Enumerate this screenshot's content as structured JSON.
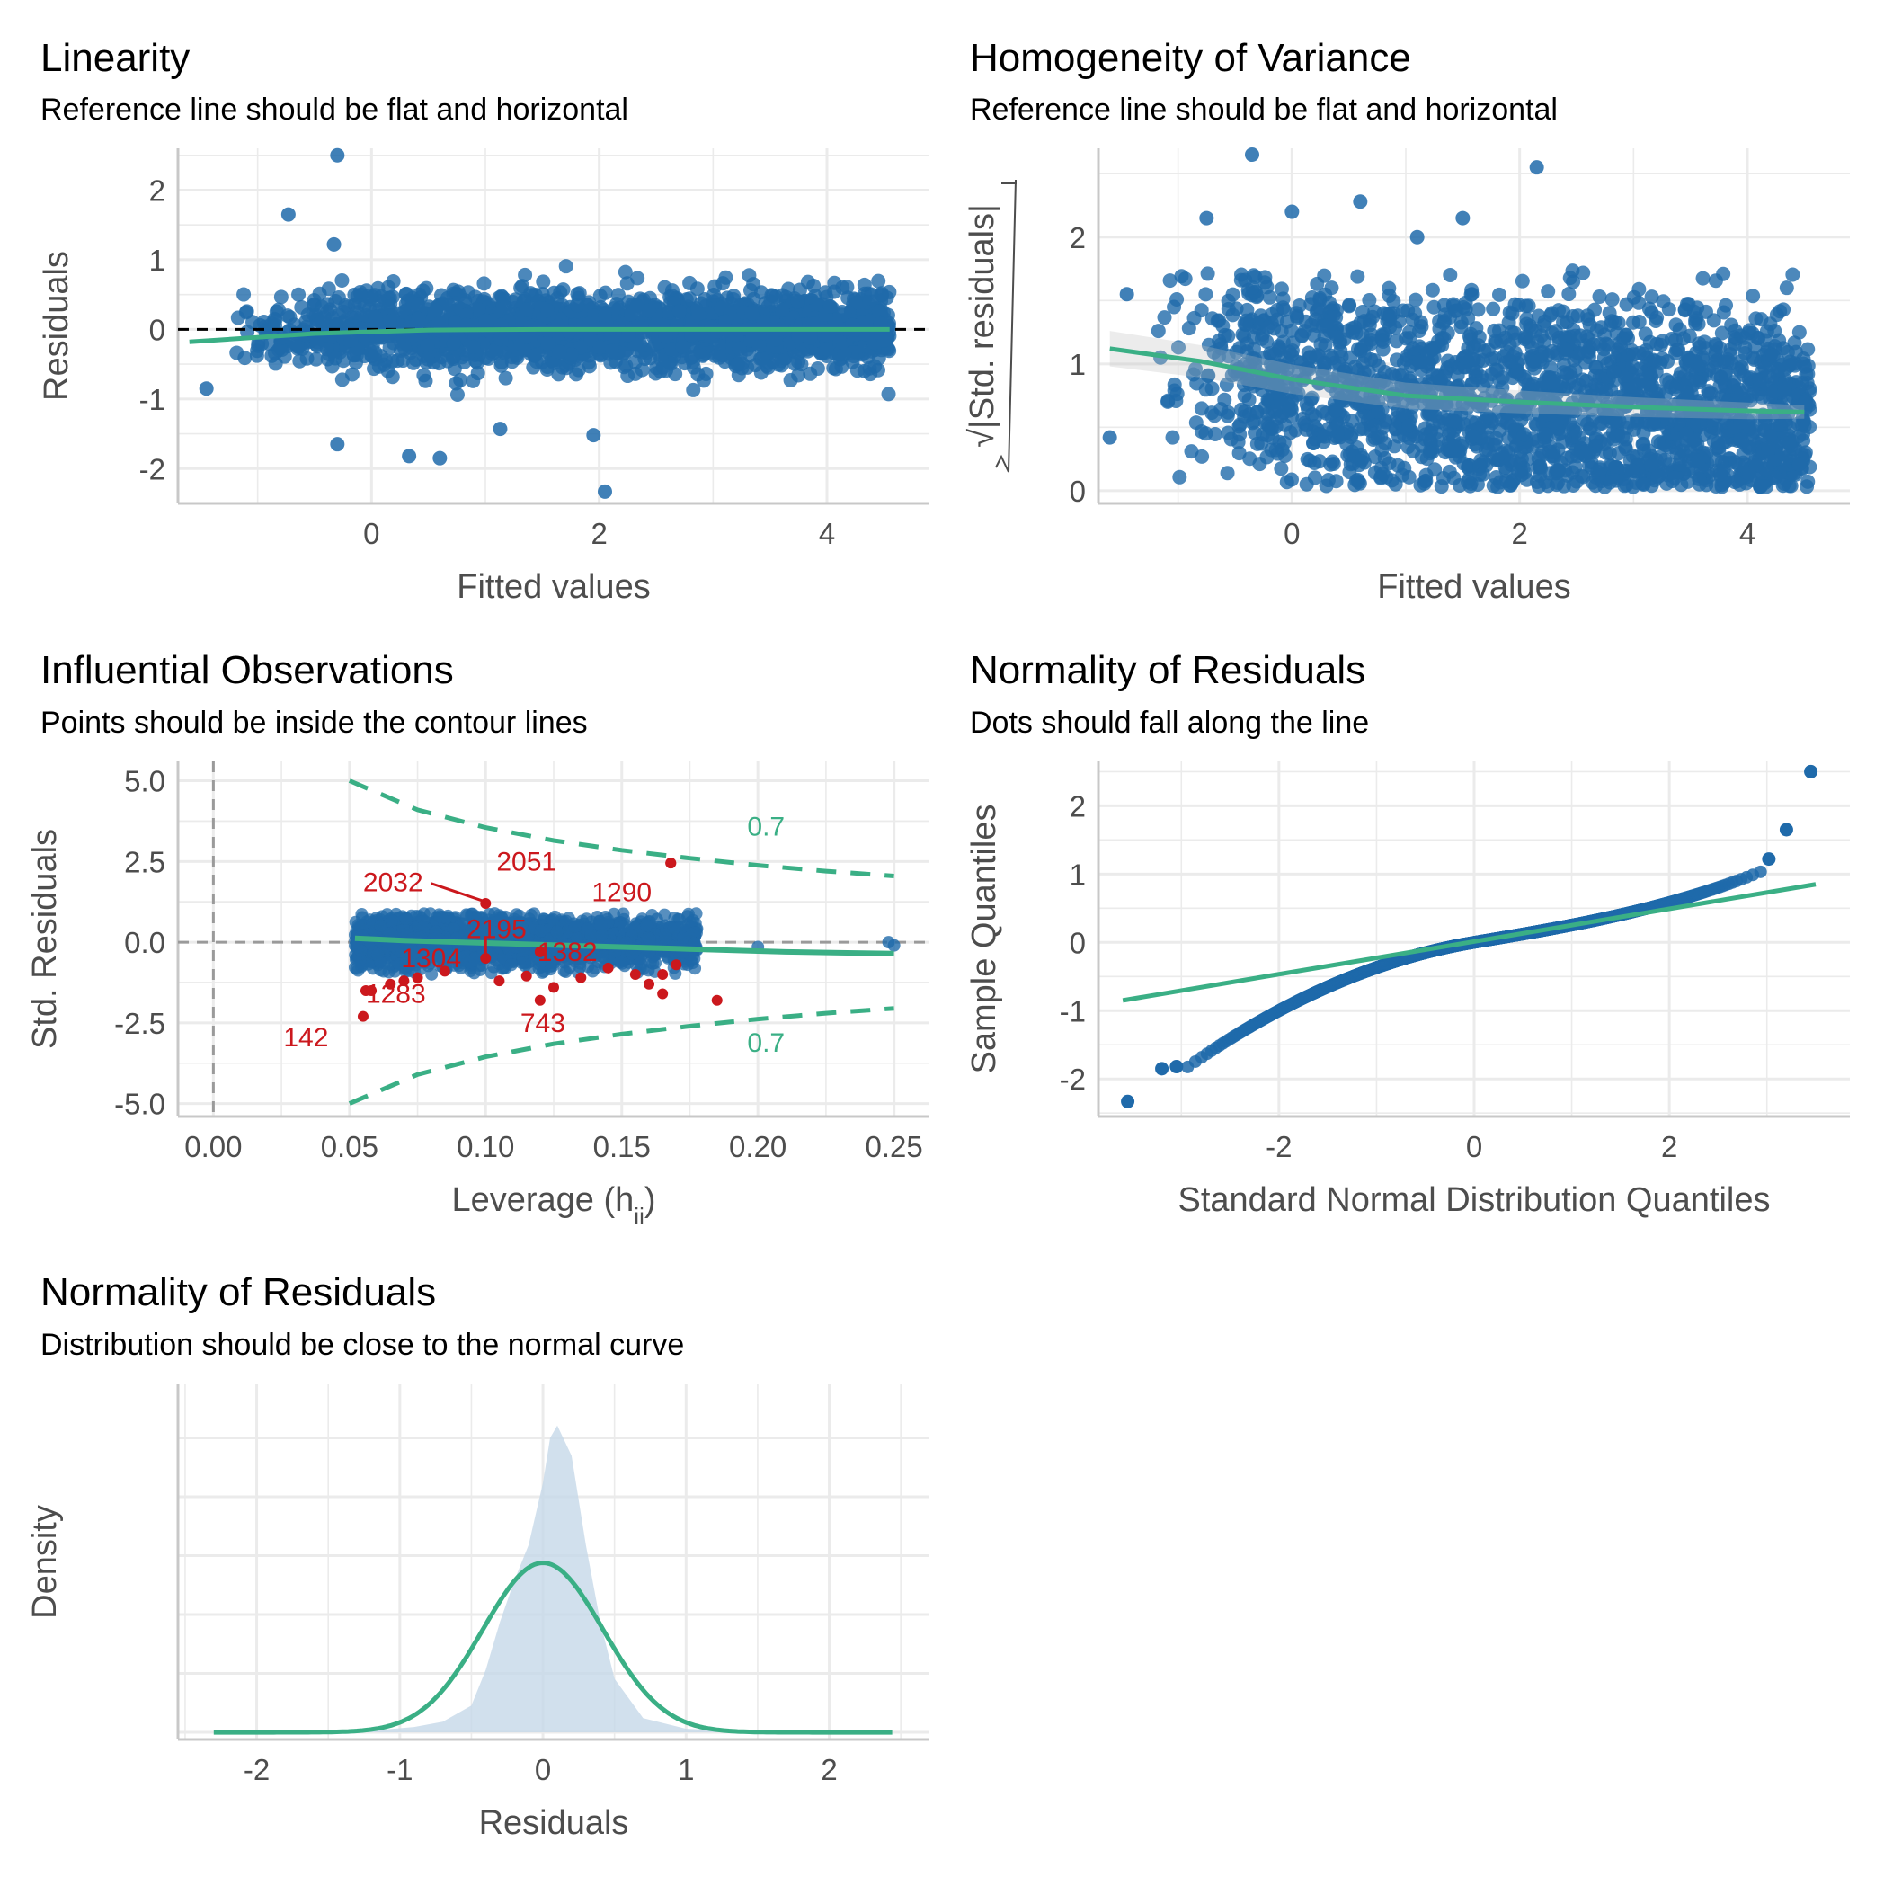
{
  "colors": {
    "points": "#1f6aaa",
    "fit": "#3aaf85",
    "highlight": "#cb181d",
    "grid": "#ebebeb",
    "axis": "#c8c8c8",
    "density_fill": "#c6d8e8"
  },
  "panels": {
    "linearity": {
      "title": "Linearity",
      "subtitle": "Reference line should be flat and horizontal"
    },
    "homogeneity": {
      "title": "Homogeneity of Variance",
      "subtitle": "Reference line should be flat and horizontal"
    },
    "influence": {
      "title": "Influential Observations",
      "subtitle": "Points should be inside the contour lines"
    },
    "qq": {
      "title": "Normality of Residuals",
      "subtitle": "Dots should fall along the line"
    },
    "density": {
      "title": "Normality of Residuals",
      "subtitle": "Distribution should be close to the normal curve"
    }
  },
  "chart_data": [
    {
      "id": "linearity",
      "type": "scatter",
      "xlabel": "Fitted values",
      "ylabel": "Residuals",
      "xlim": [
        -1.7,
        4.9
      ],
      "ylim": [
        -2.5,
        2.6
      ],
      "xticks": [
        0,
        2,
        4
      ],
      "yticks": [
        -2,
        -1,
        0,
        1,
        2
      ],
      "reference_y": 0,
      "n_points": 2100,
      "outliers": [
        [
          -0.3,
          2.5
        ],
        [
          -0.73,
          1.65
        ],
        [
          -0.33,
          1.22
        ],
        [
          2.05,
          -2.33
        ],
        [
          -0.3,
          -1.65
        ],
        [
          0.33,
          -1.82
        ],
        [
          0.6,
          -1.85
        ],
        [
          1.13,
          -1.43
        ],
        [
          1.95,
          -1.52
        ],
        [
          -1.45,
          -0.85
        ]
      ],
      "fit_line": {
        "x": [
          -1.6,
          -0.5,
          0.5,
          1.5,
          2.5,
          3.5,
          4.55
        ],
        "y": [
          -0.18,
          -0.06,
          -0.01,
          0.0,
          0.0,
          0.0,
          0.0
        ]
      }
    },
    {
      "id": "homogeneity",
      "type": "scatter",
      "xlabel": "Fitted values",
      "ylabel": "√|Std. residuals|",
      "xlim": [
        -1.7,
        4.9
      ],
      "ylim": [
        -0.1,
        2.7
      ],
      "xticks": [
        0,
        2,
        4
      ],
      "yticks": [
        0,
        1,
        2
      ],
      "n_points": 2100,
      "outliers": [
        [
          -0.35,
          2.65
        ],
        [
          2.15,
          2.55
        ],
        [
          -0.75,
          2.15
        ],
        [
          0.0,
          2.2
        ],
        [
          0.6,
          2.28
        ],
        [
          1.1,
          2.0
        ],
        [
          1.5,
          2.15
        ],
        [
          -1.45,
          1.55
        ],
        [
          -1.6,
          0.42
        ]
      ],
      "fit_line": {
        "x": [
          -1.6,
          -0.8,
          0.0,
          1.0,
          2.0,
          3.0,
          4.0,
          4.5
        ],
        "y": [
          1.12,
          1.02,
          0.88,
          0.75,
          0.7,
          0.66,
          0.63,
          0.62
        ]
      }
    },
    {
      "id": "influence",
      "type": "scatter",
      "xlabel": "Leverage (h",
      "xlabel_sub": "ii",
      "xlabel_end": ")",
      "ylabel": "Std. Residuals",
      "xlim": [
        -0.013,
        0.263
      ],
      "ylim": [
        -5.4,
        5.6
      ],
      "xticks": [
        0.0,
        0.05,
        0.1,
        0.15,
        0.2,
        0.25
      ],
      "xtick_labels": [
        "0.00",
        "0.05",
        "0.10",
        "0.15",
        "0.20",
        "0.25"
      ],
      "yticks": [
        -5.0,
        -2.5,
        0.0,
        2.5,
        5.0
      ],
      "ytick_labels": [
        "-5.0",
        "-2.5",
        "0.0",
        "2.5",
        "5.0"
      ],
      "reference_x": 0,
      "reference_y": 0,
      "n_points": 2100,
      "contour_level": "0.7",
      "contour_upper": {
        "x": [
          0.05,
          0.075,
          0.1,
          0.125,
          0.15,
          0.175,
          0.2,
          0.225,
          0.25
        ],
        "y": [
          5.0,
          4.1,
          3.55,
          3.15,
          2.85,
          2.6,
          2.38,
          2.2,
          2.05
        ]
      },
      "contour_lower": {
        "x": [
          0.05,
          0.075,
          0.1,
          0.125,
          0.15,
          0.175,
          0.2,
          0.225,
          0.25
        ],
        "y": [
          -5.0,
          -4.1,
          -3.55,
          -3.15,
          -2.85,
          -2.6,
          -2.38,
          -2.2,
          -2.05
        ]
      },
      "fit_line": {
        "x": [
          0.052,
          0.07,
          0.09,
          0.11,
          0.13,
          0.15,
          0.17,
          0.19,
          0.21,
          0.23,
          0.25
        ],
        "y": [
          0.12,
          0.05,
          0.0,
          -0.05,
          -0.1,
          -0.15,
          -0.2,
          -0.25,
          -0.3,
          -0.33,
          -0.35
        ]
      },
      "flagged_points": [
        {
          "label": "2032",
          "point": [
            0.1,
            1.2
          ],
          "label_pos": [
            0.066,
            1.85
          ]
        },
        {
          "label": "2051",
          "point": [
            0.168,
            2.45
          ],
          "label_pos": [
            0.115,
            2.5
          ]
        },
        {
          "label": "1290",
          "point": [
            0.168,
            2.45
          ],
          "label_pos": [
            0.15,
            1.55
          ]
        },
        {
          "label": "2195",
          "point": [
            0.1,
            -0.5
          ],
          "label_pos": [
            0.104,
            0.4
          ]
        },
        {
          "label": "1304",
          "point": [
            0.07,
            -1.2
          ],
          "label_pos": [
            0.08,
            -0.5
          ]
        },
        {
          "label": "1382",
          "point": [
            0.12,
            -0.3
          ],
          "label_pos": [
            0.13,
            -0.3
          ]
        },
        {
          "label": "1283",
          "point": [
            0.058,
            -1.5
          ],
          "label_pos": [
            0.067,
            -1.6
          ]
        },
        {
          "label": "743",
          "point": [
            0.12,
            -1.8
          ],
          "label_pos": [
            0.121,
            -2.5
          ]
        },
        {
          "label": "142",
          "point": [
            0.055,
            -2.3
          ],
          "label_pos": [
            0.034,
            -2.95
          ]
        }
      ],
      "other_flagged": [
        [
          0.056,
          -1.5
        ],
        [
          0.065,
          -1.3
        ],
        [
          0.075,
          -1.1
        ],
        [
          0.085,
          -0.9
        ],
        [
          0.105,
          -1.2
        ],
        [
          0.115,
          -1.05
        ],
        [
          0.125,
          -1.4
        ],
        [
          0.135,
          -1.1
        ],
        [
          0.145,
          -0.8
        ],
        [
          0.155,
          -1.0
        ],
        [
          0.16,
          -1.3
        ],
        [
          0.165,
          -1.0
        ],
        [
          0.165,
          -1.6
        ],
        [
          0.17,
          -0.7
        ],
        [
          0.185,
          -1.8
        ]
      ]
    },
    {
      "id": "qq",
      "type": "scatter",
      "xlabel": "Standard Normal Distribution Quantiles",
      "ylabel": "Sample Quantiles",
      "xlim": [
        -3.85,
        3.85
      ],
      "ylim": [
        -2.55,
        2.65
      ],
      "xticks": [
        -2,
        0,
        2
      ],
      "yticks": [
        -2,
        -1,
        0,
        1,
        2
      ],
      "n_points": 2100,
      "reference_line": {
        "x": [
          -3.6,
          3.5
        ],
        "y": [
          -0.85,
          0.85
        ]
      },
      "tail_points": [
        [
          3.45,
          2.5
        ],
        [
          3.2,
          1.65
        ],
        [
          3.02,
          1.22
        ],
        [
          -3.55,
          -2.33
        ],
        [
          -3.2,
          -1.85
        ],
        [
          -3.05,
          -1.82
        ]
      ]
    },
    {
      "id": "density",
      "type": "area",
      "xlabel": "Residuals",
      "ylabel": "Density",
      "xlim": [
        -2.55,
        2.7
      ],
      "ylim": [
        -0.04,
        1.95
      ],
      "xticks": [
        -2,
        -1,
        0,
        1,
        2
      ],
      "normal_curve": {
        "mean": 0.0,
        "sd": 0.42
      },
      "density_estimate": {
        "x": [
          -2.3,
          -1.2,
          -0.9,
          -0.7,
          -0.5,
          -0.4,
          -0.3,
          -0.2,
          -0.1,
          0.0,
          0.05,
          0.1,
          0.2,
          0.3,
          0.4,
          0.5,
          0.7,
          1.0,
          1.5,
          2.3
        ],
        "y": [
          0.0,
          0.01,
          0.03,
          0.06,
          0.15,
          0.35,
          0.62,
          0.85,
          1.05,
          1.4,
          1.65,
          1.72,
          1.55,
          1.05,
          0.62,
          0.3,
          0.08,
          0.02,
          0.005,
          0.0
        ]
      }
    }
  ]
}
